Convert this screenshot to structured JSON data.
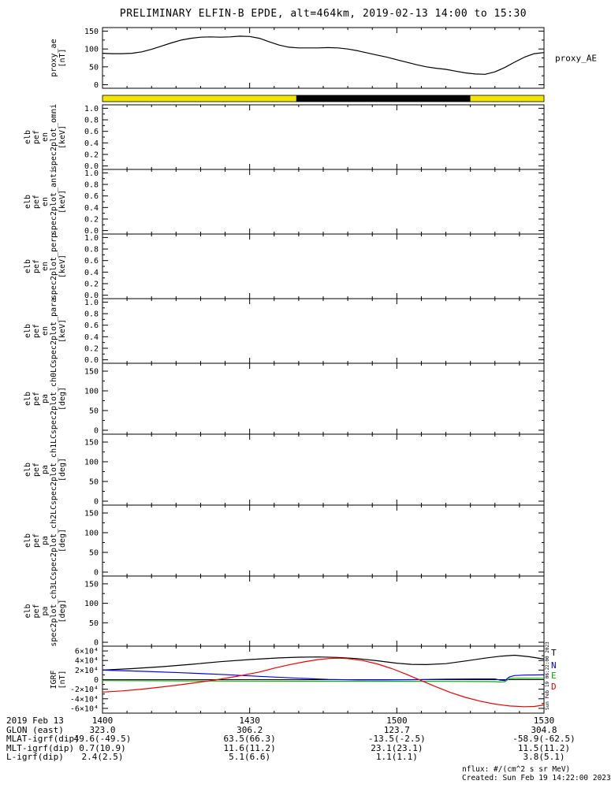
{
  "title": "PRELIMINARY ELFIN-B EPDE, alt=464km, 2019-02-13 14:00 to 15:30",
  "colors": {
    "yellow": "#f2e600",
    "black": "#000000",
    "blue": "#0000ee",
    "green": "#00b200",
    "red": "#ee0000"
  },
  "xaxis": {
    "min": 0,
    "max": 90,
    "minor_step": 5,
    "major_ticks": [
      {
        "min": 0,
        "label": "1400"
      },
      {
        "min": 30,
        "label": "1430"
      },
      {
        "min": 60,
        "label": "1500"
      },
      {
        "min": 90,
        "label": "1530"
      }
    ]
  },
  "bar": {
    "segments": [
      {
        "from": 0,
        "to": 39.5,
        "color": "#f2e600"
      },
      {
        "from": 39.5,
        "to": 75.0,
        "color": "#000000"
      },
      {
        "from": 75.0,
        "to": 90,
        "color": "#f2e600"
      }
    ]
  },
  "chart_data": [
    {
      "id": "proxy-ae",
      "type": "line",
      "ylabel_lines": [
        "proxy_ae",
        "[nT]"
      ],
      "right_label": "proxy_AE",
      "ylim": [
        -10,
        160
      ],
      "yticks": [
        {
          "v": 0,
          "label": "0"
        },
        {
          "v": 50,
          "label": "50"
        },
        {
          "v": 100,
          "label": "100"
        },
        {
          "v": 150,
          "label": "150"
        }
      ],
      "series": [
        {
          "name": "proxy_AE",
          "color": "#000000",
          "x": [
            0,
            2,
            4,
            6,
            8,
            10,
            12,
            14,
            16,
            18,
            20,
            22,
            24,
            26,
            28,
            30,
            32,
            34,
            36,
            38,
            40,
            42,
            44,
            46,
            48,
            50,
            52,
            54,
            56,
            58,
            60,
            62,
            64,
            66,
            68,
            70,
            72,
            74,
            76,
            78,
            80,
            82,
            84,
            86,
            88,
            90
          ],
          "y": [
            88,
            87,
            87,
            88,
            92,
            99,
            108,
            117,
            125,
            130,
            133,
            134,
            133,
            134,
            136,
            135,
            130,
            120,
            111,
            105,
            103,
            103,
            103,
            104,
            103,
            100,
            95,
            89,
            83,
            77,
            70,
            63,
            56,
            50,
            46,
            43,
            38,
            33,
            30,
            29,
            36,
            48,
            63,
            77,
            87,
            90
          ]
        }
      ]
    },
    {
      "id": "en-spec2plot-omni",
      "type": "empty",
      "ylabel_lines": [
        "elb",
        "pef",
        "en",
        "spec2plot_omni",
        "[keV]"
      ],
      "ylim": [
        -0.06,
        1.06
      ],
      "yticks": [
        {
          "v": 0,
          "label": "0.0"
        },
        {
          "v": 0.2,
          "label": "0.2"
        },
        {
          "v": 0.4,
          "label": "0.4"
        },
        {
          "v": 0.6,
          "label": "0.6"
        },
        {
          "v": 0.8,
          "label": "0.8"
        },
        {
          "v": 1,
          "label": "1.0"
        }
      ]
    },
    {
      "id": "en-spec2plot-anti",
      "type": "empty",
      "ylabel_lines": [
        "elb",
        "pef",
        "en",
        "spec2plot_anti",
        "[keV]"
      ],
      "ylim": [
        -0.06,
        1.06
      ],
      "yticks": [
        {
          "v": 0,
          "label": "0.0"
        },
        {
          "v": 0.2,
          "label": "0.2"
        },
        {
          "v": 0.4,
          "label": "0.4"
        },
        {
          "v": 0.6,
          "label": "0.6"
        },
        {
          "v": 0.8,
          "label": "0.8"
        },
        {
          "v": 1,
          "label": "1.0"
        }
      ]
    },
    {
      "id": "en-spec2plot-perp",
      "type": "empty",
      "ylabel_lines": [
        "elb",
        "pef",
        "en",
        "spec2plot_perp",
        "[keV]"
      ],
      "ylim": [
        -0.06,
        1.06
      ],
      "yticks": [
        {
          "v": 0,
          "label": "0.0"
        },
        {
          "v": 0.2,
          "label": "0.2"
        },
        {
          "v": 0.4,
          "label": "0.4"
        },
        {
          "v": 0.6,
          "label": "0.6"
        },
        {
          "v": 0.8,
          "label": "0.8"
        },
        {
          "v": 1,
          "label": "1.0"
        }
      ]
    },
    {
      "id": "en-spec2plot-para",
      "type": "empty",
      "ylabel_lines": [
        "elb",
        "pef",
        "en",
        "spec2plot_para",
        "[keV]"
      ],
      "ylim": [
        -0.06,
        1.06
      ],
      "yticks": [
        {
          "v": 0,
          "label": "0.0"
        },
        {
          "v": 0.2,
          "label": "0.2"
        },
        {
          "v": 0.4,
          "label": "0.4"
        },
        {
          "v": 0.6,
          "label": "0.6"
        },
        {
          "v": 0.8,
          "label": "0.8"
        },
        {
          "v": 1,
          "label": "1.0"
        }
      ]
    },
    {
      "id": "pa-spec2plot-ch0lc",
      "type": "empty",
      "ylabel_lines": [
        "elb",
        "pef",
        "pa",
        "spec2plot_ch0LC",
        "[deg]"
      ],
      "ylim": [
        -10,
        170
      ],
      "yticks": [
        {
          "v": 0,
          "label": "0"
        },
        {
          "v": 50,
          "label": "50"
        },
        {
          "v": 100,
          "label": "100"
        },
        {
          "v": 150,
          "label": "150"
        }
      ]
    },
    {
      "id": "pa-spec2plot-ch1lc",
      "type": "empty",
      "ylabel_lines": [
        "elb",
        "pef",
        "pa",
        "spec2plot_ch1LC",
        "[deg]"
      ],
      "ylim": [
        -10,
        170
      ],
      "yticks": [
        {
          "v": 0,
          "label": "0"
        },
        {
          "v": 50,
          "label": "50"
        },
        {
          "v": 100,
          "label": "100"
        },
        {
          "v": 150,
          "label": "150"
        }
      ]
    },
    {
      "id": "pa-spec2plot-ch2lc",
      "type": "empty",
      "ylabel_lines": [
        "elb",
        "pef",
        "pa",
        "spec2plot_ch2LC",
        "[deg]"
      ],
      "ylim": [
        -10,
        170
      ],
      "yticks": [
        {
          "v": 0,
          "label": "0"
        },
        {
          "v": 50,
          "label": "50"
        },
        {
          "v": 100,
          "label": "100"
        },
        {
          "v": 150,
          "label": "150"
        }
      ]
    },
    {
      "id": "pa-spec2plot-ch3lc",
      "type": "empty",
      "ylabel_lines": [
        "elb",
        "pef",
        "pa",
        "spec2plot_ch3LC",
        "[deg]"
      ],
      "ylim": [
        -10,
        170
      ],
      "yticks": [
        {
          "v": 0,
          "label": "0"
        },
        {
          "v": 50,
          "label": "50"
        },
        {
          "v": 100,
          "label": "100"
        },
        {
          "v": 150,
          "label": "150"
        }
      ]
    },
    {
      "id": "igrf",
      "type": "line",
      "ylabel_lines": [
        "IGRF",
        "[nT]"
      ],
      "zero_line": true,
      "ylim": [
        -70000,
        70000
      ],
      "yticks": [
        {
          "v": -60000,
          "label": "-6×10⁴"
        },
        {
          "v": -40000,
          "label": "-4×10⁴"
        },
        {
          "v": -20000,
          "label": "-2×10⁴"
        },
        {
          "v": 0,
          "label": "0"
        },
        {
          "v": 20000,
          "label": "2×10⁴"
        },
        {
          "v": 40000,
          "label": "4×10⁴"
        },
        {
          "v": 60000,
          "label": "6×10⁴"
        }
      ],
      "legend": [
        {
          "label": "T",
          "color": "#000000"
        },
        {
          "label": "N",
          "color": "#0000ee"
        },
        {
          "label": "E",
          "color": "#00b200"
        },
        {
          "label": "D",
          "color": "#ee0000"
        }
      ],
      "series": [
        {
          "name": "T",
          "color": "#000000",
          "x": [
            0,
            6,
            12,
            18,
            24,
            30,
            36,
            40,
            44,
            48,
            52,
            56,
            60,
            63,
            66,
            70,
            74,
            78,
            81,
            84,
            87,
            90
          ],
          "y": [
            20000,
            23000,
            27000,
            32000,
            37500,
            42000,
            45500,
            47000,
            47500,
            46500,
            44000,
            39500,
            34500,
            32000,
            31500,
            33500,
            39000,
            45000,
            49000,
            51000,
            48000,
            43000
          ]
        },
        {
          "name": "N",
          "color": "#0000ee",
          "x": [
            0,
            8,
            16,
            24,
            32,
            40,
            46,
            52,
            58,
            64,
            70,
            76,
            80,
            81,
            82,
            83,
            84,
            86,
            90
          ],
          "y": [
            20000,
            17500,
            14500,
            11000,
            7000,
            3000,
            500,
            -500,
            -500,
            0,
            1000,
            1500,
            1500,
            -1000,
            -2000,
            6000,
            8500,
            9500,
            10000
          ]
        },
        {
          "name": "E",
          "color": "#00b200",
          "x": [
            0,
            10,
            20,
            30,
            40,
            50,
            60,
            70,
            78,
            80,
            81,
            82,
            83,
            85,
            90
          ],
          "y": [
            -2000,
            -2300,
            -2600,
            -2900,
            -3100,
            -3300,
            -3500,
            -3700,
            -3900,
            -4200,
            -5000,
            -4500,
            2500,
            3000,
            2800
          ]
        },
        {
          "name": "D",
          "color": "#ee0000",
          "x": [
            0,
            4,
            8,
            12,
            16,
            20,
            24,
            28,
            32,
            35,
            38,
            41,
            44,
            46,
            48,
            50,
            53,
            56,
            59,
            62,
            65,
            68,
            71,
            74,
            77,
            80,
            83,
            86,
            88,
            90
          ],
          "y": [
            -26000,
            -23500,
            -20000,
            -15500,
            -10500,
            -5000,
            1000,
            8000,
            16000,
            24000,
            31000,
            37000,
            42000,
            44000,
            45000,
            44000,
            40000,
            33000,
            23000,
            11000,
            -2000,
            -15000,
            -27000,
            -37000,
            -45000,
            -51000,
            -55000,
            -56500,
            -56000,
            -53000
          ]
        }
      ]
    }
  ],
  "footer": {
    "rows": [
      {
        "label": "2019 Feb 13",
        "values": [
          "1400",
          "1430",
          "1500",
          "1530"
        ]
      },
      {
        "label": "GLON (east)",
        "values": [
          "323.0",
          "306.2",
          "123.7",
          "304.8"
        ]
      },
      {
        "label": "MLAT-igrf(dip)",
        "values": [
          "49.6(-49.5)",
          "63.5(66.3)",
          "-13.5(-2.5)",
          "-58.9(-62.5)"
        ]
      },
      {
        "label": "MLT-igrf(dip)",
        "values": [
          "0.7(10.9)",
          "11.6(11.2)",
          "23.1(23.1)",
          "11.5(11.2)"
        ]
      },
      {
        "label": "L-igrf(dip)",
        "values": [
          "2.4(2.5)",
          "5.1(6.6)",
          "1.1(1.1)",
          "3.8(5.1)"
        ]
      }
    ]
  },
  "notes": {
    "nflux": "nflux: #/(cm^2 s sr MeV)",
    "created": "Created: Sun Feb 19 14:22:00 2023",
    "side_timestamp": "Sun Feb 19 06:22:00 2023"
  }
}
